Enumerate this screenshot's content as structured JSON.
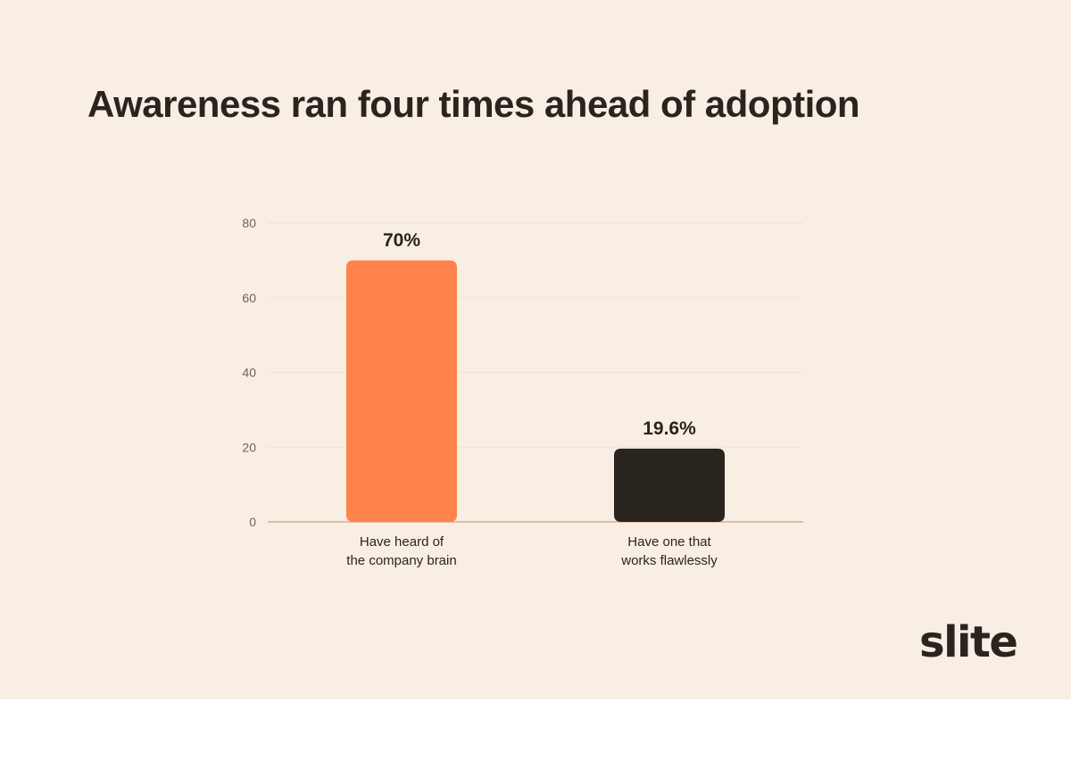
{
  "chart_data": {
    "type": "bar",
    "title": "Awareness ran four times ahead of adoption",
    "xlabel": "",
    "ylabel": "",
    "ylim": [
      0,
      80
    ],
    "yticks": [
      0,
      20,
      40,
      60,
      80
    ],
    "grid": true,
    "categories": [
      [
        "Have heard of",
        "the company brain"
      ],
      [
        "Have one that",
        "works flawlessly"
      ]
    ],
    "values": [
      70,
      19.6
    ],
    "data_labels": [
      "70%",
      "19.6%"
    ],
    "bar_colors": [
      "#ff834a",
      "#2a241f"
    ]
  },
  "brand": {
    "logo_text": "slite"
  },
  "colors": {
    "background": "#f8eee4",
    "text": "#2a241f",
    "axis_line": "#d8ab8c",
    "grid": "#efe3d7",
    "tick_text": "#6b635c"
  }
}
